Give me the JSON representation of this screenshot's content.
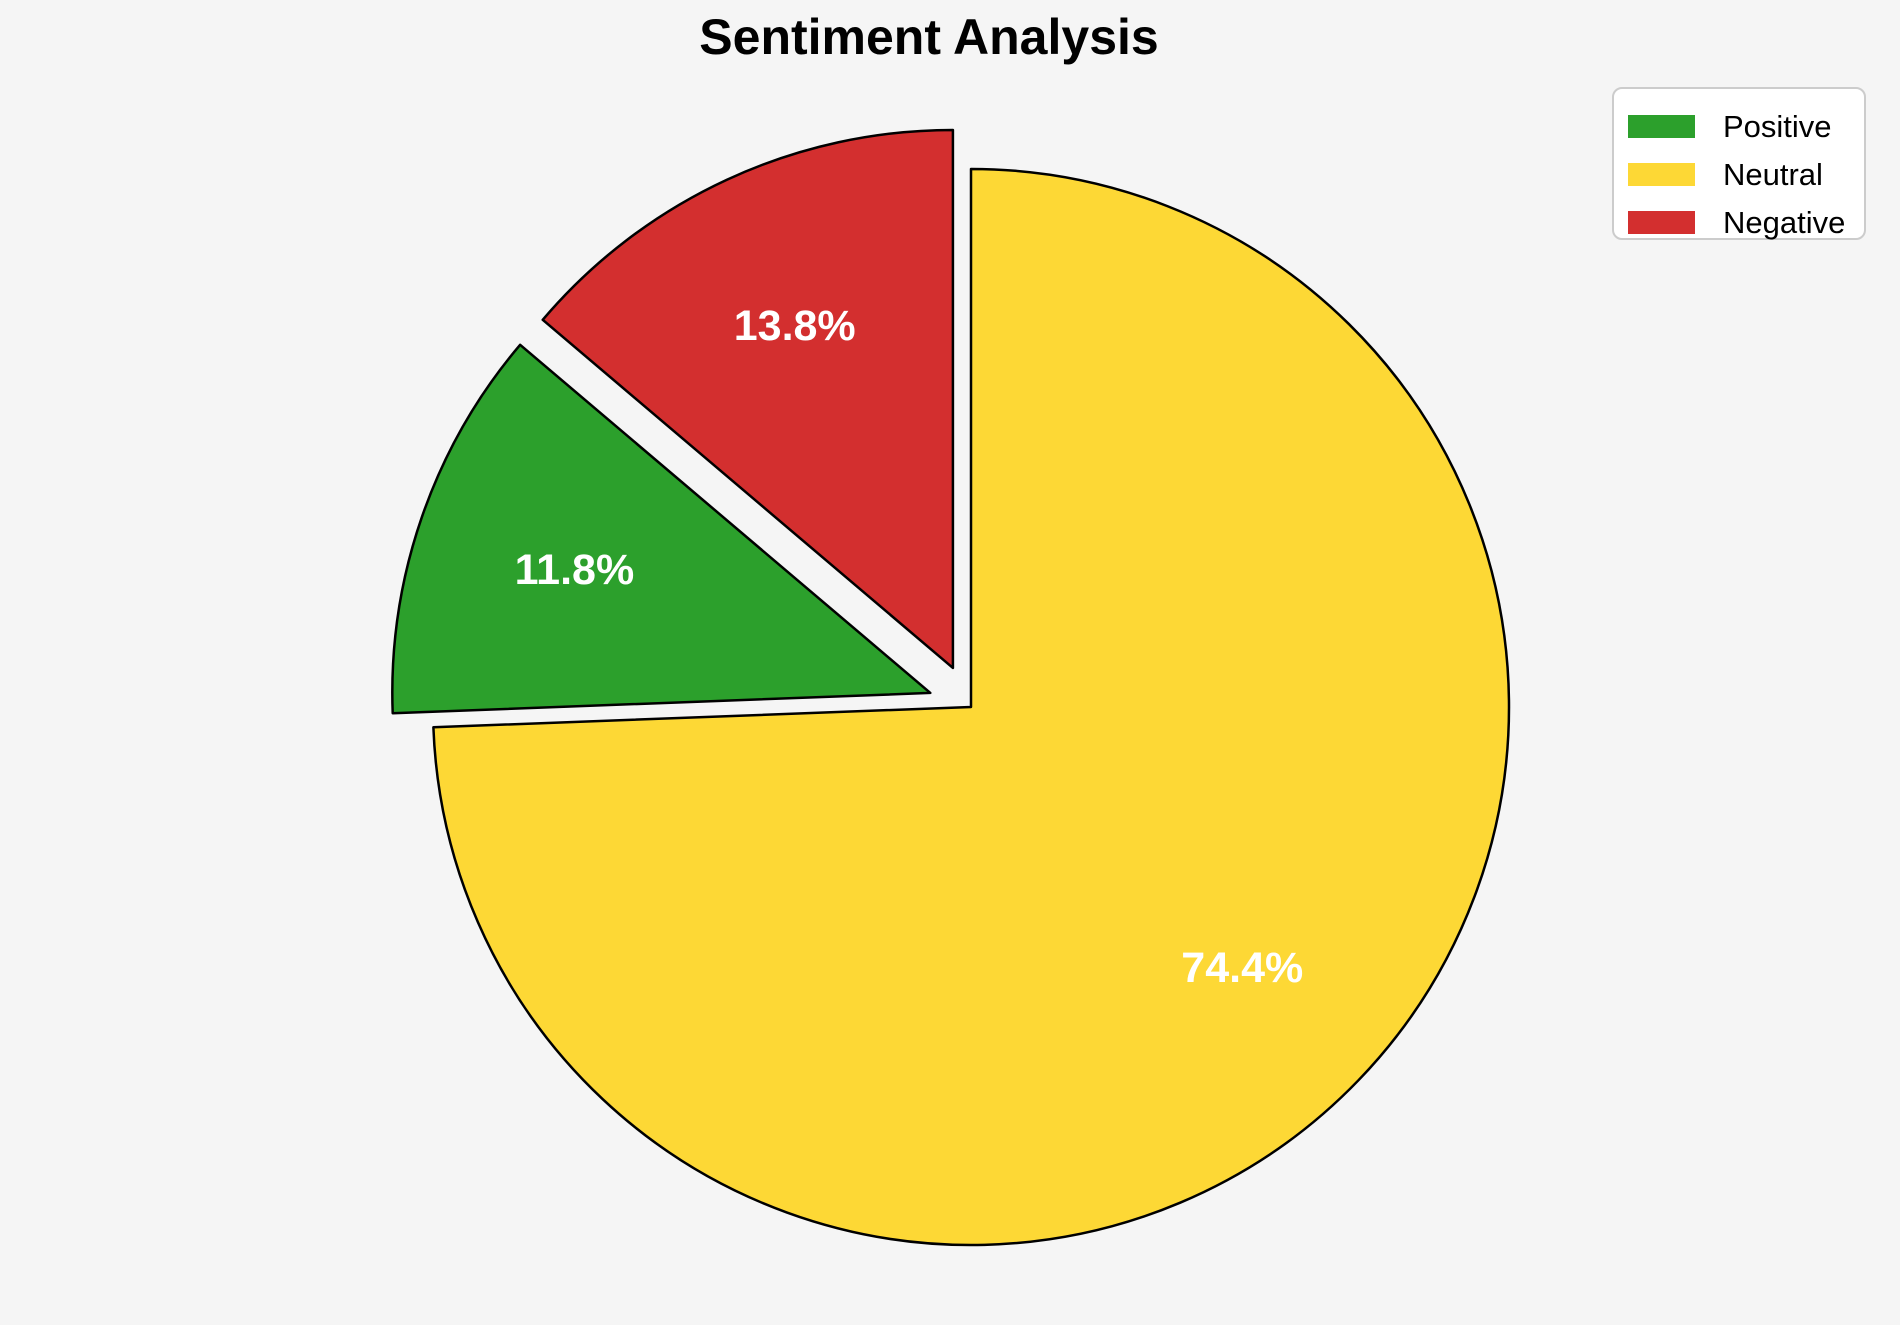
{
  "page": {
    "background_color": "#f5f5f5"
  },
  "title": {
    "text": "Sentiment Analysis"
  },
  "legend": {
    "items": [
      {
        "label": "Positive",
        "color": "#2ca02c"
      },
      {
        "label": "Neutral",
        "color": "#fdd835"
      },
      {
        "label": "Negative",
        "color": "#d32f2f"
      }
    ]
  },
  "chart_data": {
    "type": "pie",
    "title": "Sentiment Analysis",
    "slices": [
      {
        "label": "Positive",
        "value": 11.8,
        "pct_label": "11.8%",
        "color": "#2ca02c",
        "explode": 0.08
      },
      {
        "label": "Neutral",
        "value": 74.4,
        "pct_label": "74.4%",
        "color": "#fdd835",
        "explode": 0.0
      },
      {
        "label": "Negative",
        "value": 13.8,
        "pct_label": "13.8%",
        "color": "#d32f2f",
        "explode": 0.08
      }
    ],
    "start_angle_deg": 139.68,
    "direction": "counterclockwise",
    "pct_distance": 0.7,
    "pct_label_color": "#ffffff",
    "edge_color": "#000000",
    "edge_width": 2.5,
    "legend_position": "upper right",
    "legend_entries": [
      "Positive",
      "Neutral",
      "Negative"
    ]
  }
}
